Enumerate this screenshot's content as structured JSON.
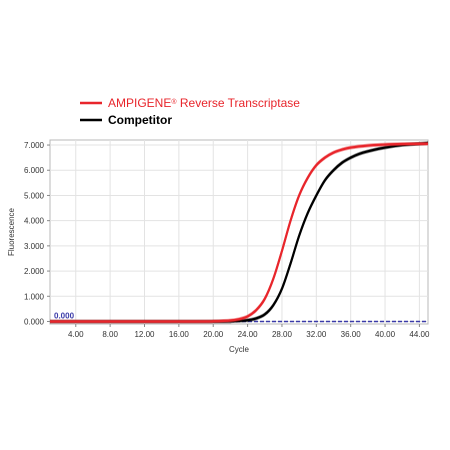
{
  "legend": {
    "items": [
      {
        "label": "AMPIGENE",
        "sup": "®",
        "suffix": " Reverse Transcriptase",
        "color": "#e8252b"
      },
      {
        "label": "Competitor",
        "color": "#000000"
      }
    ]
  },
  "chart_data": {
    "type": "line",
    "xlabel": "Cycle",
    "ylabel": "Fluorescence",
    "xlim": [
      1,
      45
    ],
    "ylim": [
      -100,
      7200
    ],
    "x_ticks": [
      "4.00",
      "8.00",
      "12.00",
      "16.00",
      "20.00",
      "24.00",
      "28.00",
      "32.00",
      "36.00",
      "40.00",
      "44.00"
    ],
    "y_ticks": [
      "0.000",
      "1.000",
      "2.000",
      "3.000",
      "4.000",
      "5.000",
      "6.000",
      "7.000"
    ],
    "threshold": {
      "value": 0,
      "label": "0.000",
      "color": "#3a3aa8"
    },
    "grid": true,
    "legend_position": "top-left",
    "series": [
      {
        "name": "AMPIGENE® Reverse Transcriptase",
        "color": "#e8252b",
        "x": [
          1,
          18,
          20,
          22,
          23,
          24,
          25,
          26,
          27,
          28,
          29,
          30,
          31,
          32,
          33,
          34,
          35,
          36,
          38,
          40,
          42,
          45
        ],
        "y": [
          0,
          0,
          10,
          40,
          90,
          200,
          450,
          900,
          1700,
          2800,
          4000,
          5000,
          5700,
          6200,
          6500,
          6700,
          6820,
          6900,
          6980,
          7020,
          7040,
          7050
        ]
      },
      {
        "name": "Competitor",
        "color": "#000000",
        "x": [
          1,
          20,
          22,
          24,
          25,
          26,
          27,
          28,
          29,
          30,
          31,
          32,
          33,
          34,
          35,
          36,
          37,
          38,
          40,
          42,
          44,
          45
        ],
        "y": [
          0,
          0,
          10,
          50,
          120,
          280,
          650,
          1300,
          2300,
          3400,
          4300,
          5000,
          5600,
          6000,
          6300,
          6500,
          6650,
          6750,
          6900,
          7000,
          7050,
          7080
        ]
      }
    ]
  }
}
